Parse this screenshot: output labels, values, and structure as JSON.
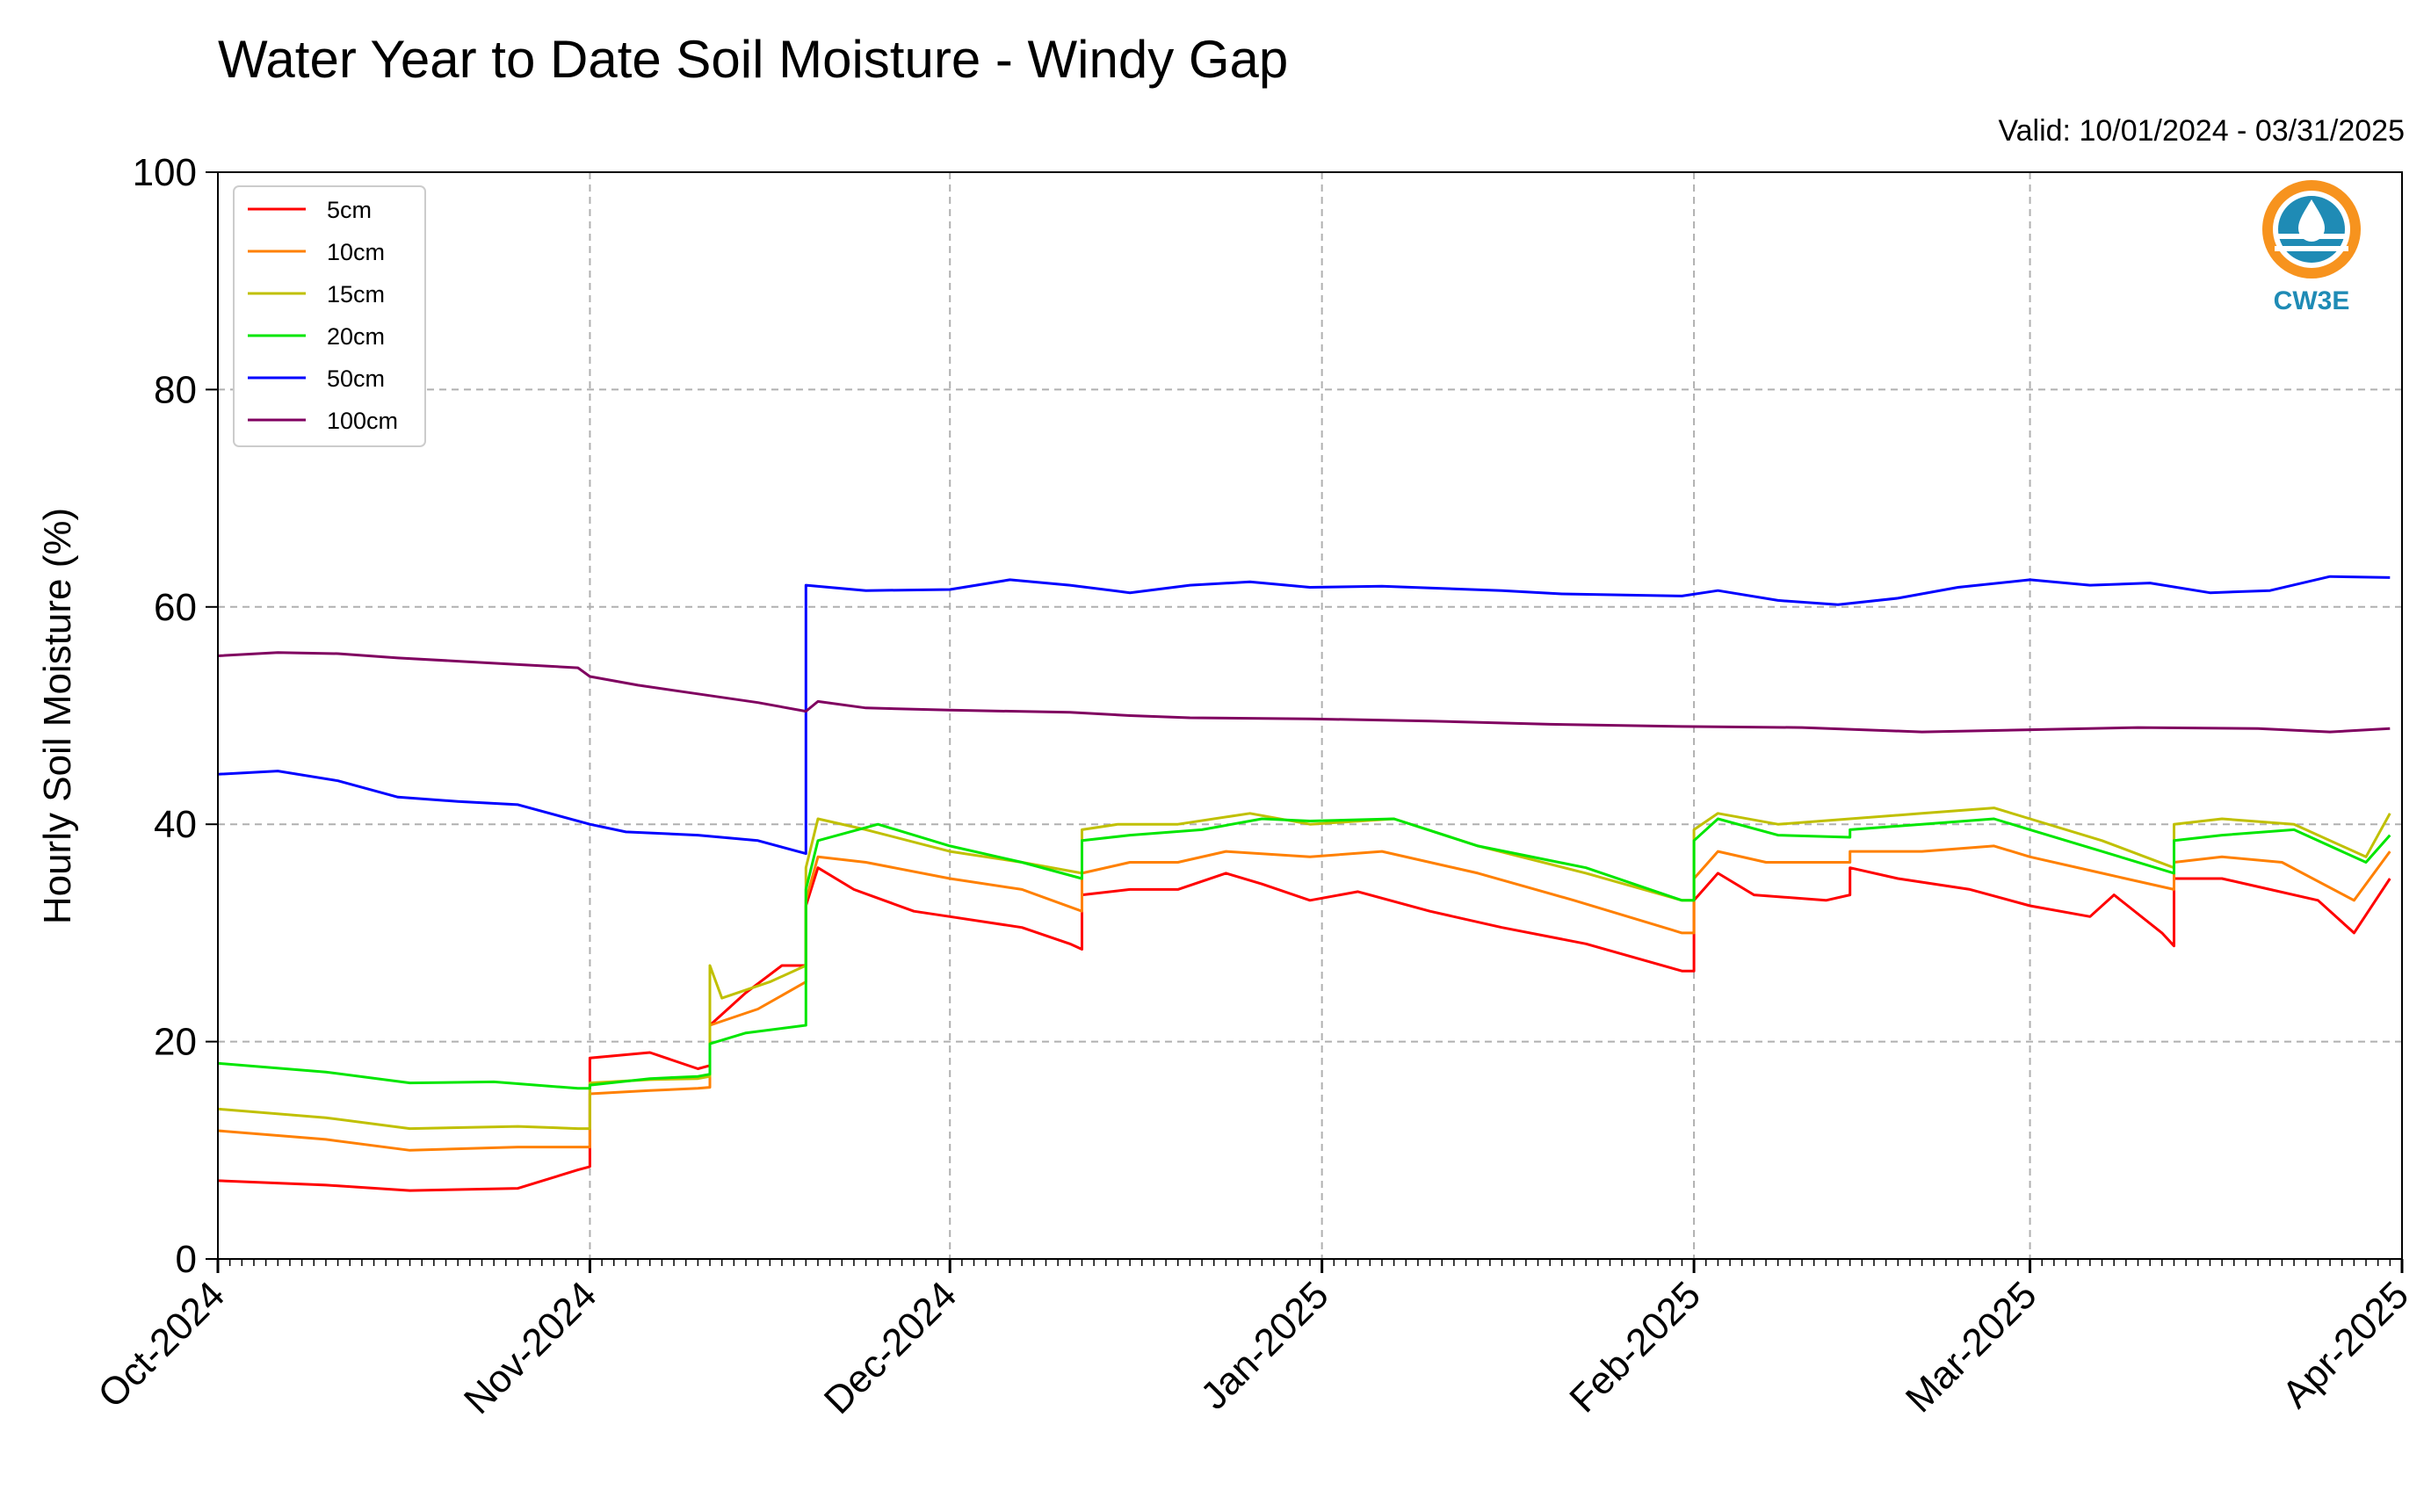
{
  "chart_data": {
    "type": "line",
    "title": "Water Year to Date Soil Moisture - Windy Gap",
    "subtitle": "Valid: 10/01/2024 - 03/31/2025",
    "xlabel": "",
    "ylabel": "Hourly Soil Moisture (%)",
    "xlim": [
      "2024-10-01",
      "2025-04-01"
    ],
    "ylim": [
      0,
      100
    ],
    "yticks": [
      0,
      20,
      40,
      60,
      80,
      100
    ],
    "xticks": [
      {
        "date": "2024-10-01",
        "label": "Oct-2024"
      },
      {
        "date": "2024-11-01",
        "label": "Nov-2024"
      },
      {
        "date": "2024-12-01",
        "label": "Dec-2024"
      },
      {
        "date": "2025-01-01",
        "label": "Jan-2025"
      },
      {
        "date": "2025-02-01",
        "label": "Feb-2025"
      },
      {
        "date": "2025-03-01",
        "label": "Mar-2025"
      },
      {
        "date": "2025-04-01",
        "label": "Apr-2025"
      }
    ],
    "grid": true,
    "legend_position": "top-left",
    "series": [
      {
        "name": "5cm",
        "color": "#ff0000",
        "points": [
          [
            "2024-10-01",
            7.2
          ],
          [
            "2024-10-10",
            6.8
          ],
          [
            "2024-10-17",
            6.3
          ],
          [
            "2024-10-26",
            6.5
          ],
          [
            "2024-10-31",
            8.2
          ],
          [
            "2024-11-01",
            8.5
          ],
          [
            "2024-11-01",
            18.5
          ],
          [
            "2024-11-06",
            19.0
          ],
          [
            "2024-11-10",
            17.5
          ],
          [
            "2024-11-11",
            17.8
          ],
          [
            "2024-11-11",
            21.5
          ],
          [
            "2024-11-14",
            24.5
          ],
          [
            "2024-11-17",
            27.0
          ],
          [
            "2024-11-19",
            27.0
          ],
          [
            "2024-11-19",
            32.5
          ],
          [
            "2024-11-20",
            36.0
          ],
          [
            "2024-11-23",
            34.0
          ],
          [
            "2024-11-28",
            32.0
          ],
          [
            "2024-12-01",
            31.5
          ],
          [
            "2024-12-07",
            30.5
          ],
          [
            "2024-12-11",
            29.0
          ],
          [
            "2024-12-12",
            28.5
          ],
          [
            "2024-12-12",
            33.5
          ],
          [
            "2024-12-16",
            34.0
          ],
          [
            "2024-12-20",
            34.0
          ],
          [
            "2024-12-24",
            35.5
          ],
          [
            "2024-12-27",
            34.5
          ],
          [
            "2024-12-31",
            33.0
          ],
          [
            "2025-01-04",
            33.8
          ],
          [
            "2025-01-10",
            32.0
          ],
          [
            "2025-01-16",
            30.5
          ],
          [
            "2025-01-23",
            29.0
          ],
          [
            "2025-01-31",
            26.5
          ],
          [
            "2025-02-01",
            26.5
          ],
          [
            "2025-02-01",
            33.0
          ],
          [
            "2025-02-03",
            35.5
          ],
          [
            "2025-02-06",
            33.5
          ],
          [
            "2025-02-12",
            33.0
          ],
          [
            "2025-02-14",
            33.5
          ],
          [
            "2025-02-14",
            36.0
          ],
          [
            "2025-02-18",
            35.0
          ],
          [
            "2025-02-24",
            34.0
          ],
          [
            "2025-03-01",
            32.5
          ],
          [
            "2025-03-06",
            31.5
          ],
          [
            "2025-03-08",
            33.5
          ],
          [
            "2025-03-12",
            30.0
          ],
          [
            "2025-03-13",
            28.8
          ],
          [
            "2025-03-13",
            35.0
          ],
          [
            "2025-03-17",
            35.0
          ],
          [
            "2025-03-21",
            34.0
          ],
          [
            "2025-03-25",
            33.0
          ],
          [
            "2025-03-28",
            30.0
          ],
          [
            "2025-03-31",
            35.0
          ]
        ]
      },
      {
        "name": "10cm",
        "color": "#ff8000",
        "points": [
          [
            "2024-10-01",
            11.8
          ],
          [
            "2024-10-10",
            11.0
          ],
          [
            "2024-10-17",
            10.0
          ],
          [
            "2024-10-26",
            10.3
          ],
          [
            "2024-10-31",
            10.3
          ],
          [
            "2024-11-01",
            10.3
          ],
          [
            "2024-11-01",
            15.2
          ],
          [
            "2024-11-06",
            15.5
          ],
          [
            "2024-11-10",
            15.7
          ],
          [
            "2024-11-11",
            15.8
          ],
          [
            "2024-11-11",
            21.5
          ],
          [
            "2024-11-15",
            23.0
          ],
          [
            "2024-11-19",
            25.5
          ],
          [
            "2024-11-19",
            33.0
          ],
          [
            "2024-11-20",
            37.0
          ],
          [
            "2024-11-24",
            36.5
          ],
          [
            "2024-12-01",
            35.0
          ],
          [
            "2024-12-07",
            34.0
          ],
          [
            "2024-12-12",
            32.0
          ],
          [
            "2024-12-12",
            35.5
          ],
          [
            "2024-12-16",
            36.5
          ],
          [
            "2024-12-20",
            36.5
          ],
          [
            "2024-12-24",
            37.5
          ],
          [
            "2024-12-31",
            37.0
          ],
          [
            "2025-01-06",
            37.5
          ],
          [
            "2025-01-14",
            35.5
          ],
          [
            "2025-01-22",
            33.0
          ],
          [
            "2025-01-31",
            30.0
          ],
          [
            "2025-02-01",
            30.0
          ],
          [
            "2025-02-01",
            35.0
          ],
          [
            "2025-02-03",
            37.5
          ],
          [
            "2025-02-07",
            36.5
          ],
          [
            "2025-02-14",
            36.5
          ],
          [
            "2025-02-14",
            37.5
          ],
          [
            "2025-02-20",
            37.5
          ],
          [
            "2025-02-26",
            38.0
          ],
          [
            "2025-03-01",
            37.0
          ],
          [
            "2025-03-07",
            35.5
          ],
          [
            "2025-03-13",
            34.0
          ],
          [
            "2025-03-13",
            36.5
          ],
          [
            "2025-03-17",
            37.0
          ],
          [
            "2025-03-22",
            36.5
          ],
          [
            "2025-03-28",
            33.0
          ],
          [
            "2025-03-31",
            37.5
          ]
        ]
      },
      {
        "name": "15cm",
        "color": "#c0c000",
        "points": [
          [
            "2024-10-01",
            13.8
          ],
          [
            "2024-10-10",
            13.0
          ],
          [
            "2024-10-17",
            12.0
          ],
          [
            "2024-10-26",
            12.2
          ],
          [
            "2024-10-31",
            12.0
          ],
          [
            "2024-11-01",
            12.0
          ],
          [
            "2024-11-01",
            16.2
          ],
          [
            "2024-11-06",
            16.5
          ],
          [
            "2024-11-10",
            16.6
          ],
          [
            "2024-11-11",
            16.8
          ],
          [
            "2024-11-11",
            27.0
          ],
          [
            "2024-11-12",
            24.0
          ],
          [
            "2024-11-16",
            25.5
          ],
          [
            "2024-11-19",
            27.0
          ],
          [
            "2024-11-19",
            36.0
          ],
          [
            "2024-11-20",
            40.5
          ],
          [
            "2024-11-24",
            39.5
          ],
          [
            "2024-12-01",
            37.5
          ],
          [
            "2024-12-07",
            36.5
          ],
          [
            "2024-12-12",
            35.5
          ],
          [
            "2024-12-12",
            39.5
          ],
          [
            "2024-12-15",
            40.0
          ],
          [
            "2024-12-20",
            40.0
          ],
          [
            "2024-12-26",
            41.0
          ],
          [
            "2024-12-31",
            40.0
          ],
          [
            "2025-01-07",
            40.5
          ],
          [
            "2025-01-14",
            38.0
          ],
          [
            "2025-01-23",
            35.5
          ],
          [
            "2025-01-31",
            33.0
          ],
          [
            "2025-02-01",
            33.0
          ],
          [
            "2025-02-01",
            39.5
          ],
          [
            "2025-02-03",
            41.0
          ],
          [
            "2025-02-08",
            40.0
          ],
          [
            "2025-02-14",
            40.5
          ],
          [
            "2025-02-20",
            41.0
          ],
          [
            "2025-02-26",
            41.5
          ],
          [
            "2025-03-01",
            40.5
          ],
          [
            "2025-03-07",
            38.5
          ],
          [
            "2025-03-13",
            36.0
          ],
          [
            "2025-03-13",
            40.0
          ],
          [
            "2025-03-17",
            40.5
          ],
          [
            "2025-03-23",
            40.0
          ],
          [
            "2025-03-29",
            37.0
          ],
          [
            "2025-03-31",
            41.0
          ]
        ]
      },
      {
        "name": "20cm",
        "color": "#00e600",
        "points": [
          [
            "2024-10-01",
            18.0
          ],
          [
            "2024-10-10",
            17.2
          ],
          [
            "2024-10-17",
            16.2
          ],
          [
            "2024-10-24",
            16.3
          ],
          [
            "2024-10-31",
            15.7
          ],
          [
            "2024-11-01",
            15.7
          ],
          [
            "2024-11-01",
            16.0
          ],
          [
            "2024-11-06",
            16.6
          ],
          [
            "2024-11-10",
            16.8
          ],
          [
            "2024-11-11",
            17.0
          ],
          [
            "2024-11-11",
            19.8
          ],
          [
            "2024-11-14",
            20.8
          ],
          [
            "2024-11-19",
            21.5
          ],
          [
            "2024-11-19",
            34.0
          ],
          [
            "2024-11-20",
            38.5
          ],
          [
            "2024-11-25",
            40.0
          ],
          [
            "2024-12-01",
            38.0
          ],
          [
            "2024-12-07",
            36.5
          ],
          [
            "2024-12-12",
            35.0
          ],
          [
            "2024-12-12",
            38.5
          ],
          [
            "2024-12-16",
            39.0
          ],
          [
            "2024-12-22",
            39.5
          ],
          [
            "2024-12-27",
            40.5
          ],
          [
            "2024-12-31",
            40.3
          ],
          [
            "2025-01-07",
            40.5
          ],
          [
            "2025-01-14",
            38.0
          ],
          [
            "2025-01-23",
            36.0
          ],
          [
            "2025-01-31",
            33.0
          ],
          [
            "2025-02-01",
            33.0
          ],
          [
            "2025-02-01",
            38.5
          ],
          [
            "2025-02-03",
            40.5
          ],
          [
            "2025-02-08",
            39.0
          ],
          [
            "2025-02-14",
            38.8
          ],
          [
            "2025-02-14",
            39.5
          ],
          [
            "2025-02-20",
            40.0
          ],
          [
            "2025-02-26",
            40.5
          ],
          [
            "2025-03-01",
            39.5
          ],
          [
            "2025-03-07",
            37.5
          ],
          [
            "2025-03-13",
            35.5
          ],
          [
            "2025-03-13",
            38.5
          ],
          [
            "2025-03-17",
            39.0
          ],
          [
            "2025-03-23",
            39.5
          ],
          [
            "2025-03-29",
            36.5
          ],
          [
            "2025-03-31",
            39.0
          ]
        ]
      },
      {
        "name": "50cm",
        "color": "#0000ff",
        "points": [
          [
            "2024-10-01",
            44.6
          ],
          [
            "2024-10-06",
            44.9
          ],
          [
            "2024-10-11",
            44.0
          ],
          [
            "2024-10-16",
            42.5
          ],
          [
            "2024-10-21",
            42.1
          ],
          [
            "2024-10-26",
            41.8
          ],
          [
            "2024-11-01",
            40.0
          ],
          [
            "2024-11-04",
            39.3
          ],
          [
            "2024-11-10",
            39.0
          ],
          [
            "2024-11-15",
            38.5
          ],
          [
            "2024-11-19",
            37.3
          ],
          [
            "2024-11-19",
            62.0
          ],
          [
            "2024-11-24",
            61.5
          ],
          [
            "2024-12-01",
            61.6
          ],
          [
            "2024-12-06",
            62.5
          ],
          [
            "2024-12-11",
            62.0
          ],
          [
            "2024-12-16",
            61.3
          ],
          [
            "2024-12-21",
            62.0
          ],
          [
            "2024-12-26",
            62.3
          ],
          [
            "2024-12-31",
            61.8
          ],
          [
            "2025-01-06",
            61.9
          ],
          [
            "2025-01-11",
            61.7
          ],
          [
            "2025-01-16",
            61.5
          ],
          [
            "2025-01-21",
            61.2
          ],
          [
            "2025-01-31",
            61.0
          ],
          [
            "2025-02-03",
            61.5
          ],
          [
            "2025-02-08",
            60.6
          ],
          [
            "2025-02-13",
            60.2
          ],
          [
            "2025-02-18",
            60.8
          ],
          [
            "2025-02-23",
            61.8
          ],
          [
            "2025-03-01",
            62.5
          ],
          [
            "2025-03-06",
            62.0
          ],
          [
            "2025-03-11",
            62.2
          ],
          [
            "2025-03-16",
            61.3
          ],
          [
            "2025-03-21",
            61.5
          ],
          [
            "2025-03-26",
            62.8
          ],
          [
            "2025-03-31",
            62.7
          ]
        ]
      },
      {
        "name": "100cm",
        "color": "#800060",
        "points": [
          [
            "2024-10-01",
            55.5
          ],
          [
            "2024-10-06",
            55.8
          ],
          [
            "2024-10-11",
            55.7
          ],
          [
            "2024-10-16",
            55.3
          ],
          [
            "2024-10-21",
            55.0
          ],
          [
            "2024-10-26",
            54.7
          ],
          [
            "2024-10-31",
            54.4
          ],
          [
            "2024-11-01",
            53.6
          ],
          [
            "2024-11-05",
            52.8
          ],
          [
            "2024-11-10",
            52.0
          ],
          [
            "2024-11-15",
            51.2
          ],
          [
            "2024-11-19",
            50.4
          ],
          [
            "2024-11-20",
            51.3
          ],
          [
            "2024-11-24",
            50.7
          ],
          [
            "2024-12-01",
            50.5
          ],
          [
            "2024-12-11",
            50.3
          ],
          [
            "2024-12-16",
            50.0
          ],
          [
            "2024-12-21",
            49.8
          ],
          [
            "2024-12-31",
            49.7
          ],
          [
            "2025-01-10",
            49.5
          ],
          [
            "2025-01-20",
            49.2
          ],
          [
            "2025-01-31",
            49.0
          ],
          [
            "2025-02-10",
            48.9
          ],
          [
            "2025-02-20",
            48.5
          ],
          [
            "2025-03-01",
            48.7
          ],
          [
            "2025-03-10",
            48.9
          ],
          [
            "2025-03-20",
            48.8
          ],
          [
            "2025-03-26",
            48.5
          ],
          [
            "2025-03-31",
            48.8
          ]
        ]
      }
    ]
  },
  "logo": {
    "text": "CW3E",
    "ring_color": "#f7931e",
    "text_color": "#1f8bb5"
  }
}
